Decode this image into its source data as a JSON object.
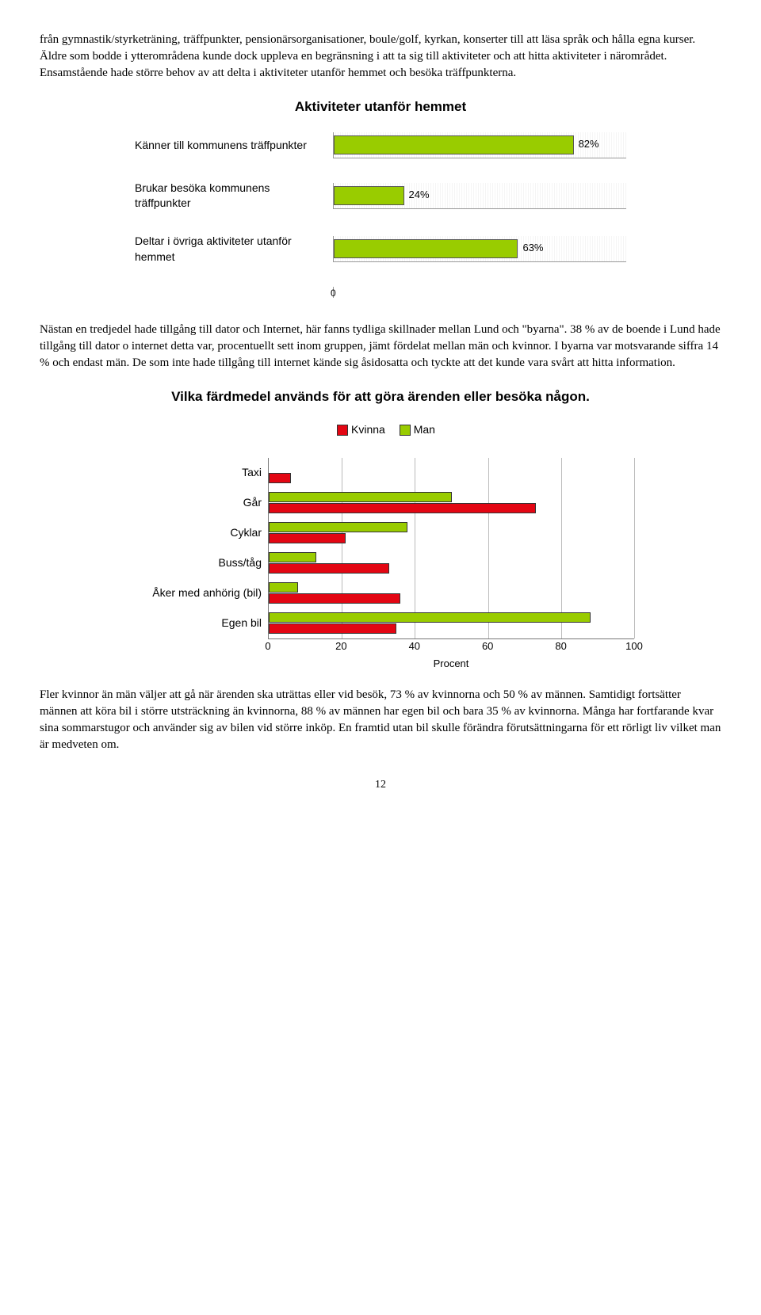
{
  "para1": "från gymnastik/styrketräning, träffpunkter, pensionärsorganisationer, boule/golf, kyrkan, konserter till att läsa språk och hålla egna kurser. Äldre som bodde i ytterområdena kunde dock uppleva en begränsning i att ta sig till aktiviteter och att hitta aktiviteter i närområdet. Ensamstående hade större behov av att delta i aktiviteter utanför hemmet och besöka träffpunkterna.",
  "chart1": {
    "title": "Aktiviteter utanför hemmet",
    "bar_color": "#99cc00",
    "bar_border": "#555555",
    "max": 100,
    "rows": [
      {
        "label": "Känner till kommunens träffpunkter",
        "value": 82,
        "text": "82%"
      },
      {
        "label": "Brukar besöka  kommunens träffpunkter",
        "value": 24,
        "text": "24%"
      },
      {
        "label": "Deltar i övriga aktiviteter utanför hemmet",
        "value": 63,
        "text": "63%"
      }
    ],
    "zero_label": "0"
  },
  "para2": "Nästan en tredjedel hade tillgång till dator och Internet, här fanns tydliga skillnader mellan Lund och \"byarna\". 38 % av de boende i Lund hade tillgång till dator o internet detta var, procentuellt sett inom gruppen, jämt fördelat mellan män och kvinnor. I byarna var motsvarande siffra 14 % och endast män. De som inte hade tillgång till internet kände sig åsidosatta och tyckte att det kunde vara svårt att hitta information.",
  "chart2": {
    "title": "Vilka färdmedel används för att göra ärenden eller besöka någon.",
    "legend": {
      "k": "Kvinna",
      "m": "Man"
    },
    "colors": {
      "kvinna": "#e30613",
      "man": "#99cc00",
      "border": "#333333",
      "grid": "#bbbbbb"
    },
    "max": 100,
    "ticks": [
      0,
      20,
      40,
      60,
      80,
      100
    ],
    "xtitle": "Procent",
    "rows": [
      {
        "label": "Taxi",
        "man": 0,
        "kvinna": 6
      },
      {
        "label": "Går",
        "man": 50,
        "kvinna": 73
      },
      {
        "label": "Cyklar",
        "man": 38,
        "kvinna": 21
      },
      {
        "label": "Buss/tåg",
        "man": 13,
        "kvinna": 33
      },
      {
        "label": "Åker med anhörig (bil)",
        "man": 8,
        "kvinna": 36
      },
      {
        "label": "Egen bil",
        "man": 88,
        "kvinna": 35
      }
    ]
  },
  "para3": "Fler kvinnor än män väljer att gå när ärenden ska uträttas eller vid besök, 73 % av kvinnorna och 50 % av männen. Samtidigt fortsätter männen att köra bil i större utsträckning än kvinnorna, 88 % av männen har egen bil och bara 35 % av kvinnorna. Många har fortfarande kvar sina sommarstugor och använder sig av bilen vid större inköp. En framtid utan bil skulle förändra förutsättningarna för ett rörligt liv vilket man är medveten om.",
  "pagenum": "12"
}
